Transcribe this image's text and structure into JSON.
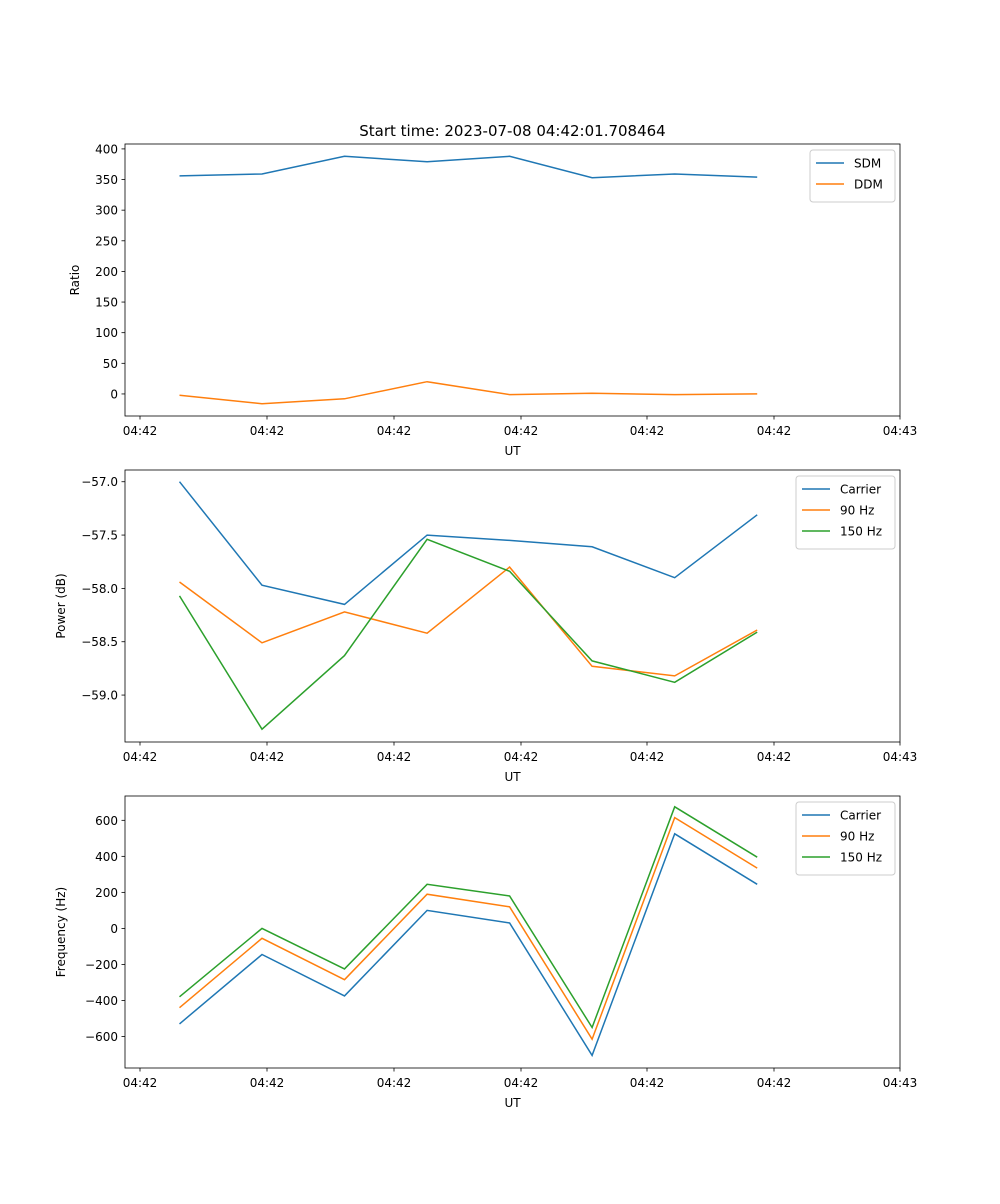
{
  "figure_title": "Start time: 2023-07-08 04:42:01.708464",
  "colors": {
    "blue": "#1f77b4",
    "orange": "#ff7f0e",
    "green": "#2ca02c"
  },
  "chart_data": [
    {
      "type": "line",
      "title": "Start time: 2023-07-08 04:42:01.708464",
      "xlabel": "UT",
      "ylabel": "Ratio",
      "x_ticks": [
        "04:42",
        "04:42",
        "04:42",
        "04:42",
        "04:42",
        "04:42",
        "04:43"
      ],
      "x_index": [
        1,
        2,
        3,
        4,
        5,
        6,
        7,
        8
      ],
      "xlim": [
        0.34,
        9.73
      ],
      "ylim": [
        -36,
        408
      ],
      "y_ticks": [
        400,
        350,
        300,
        250,
        200,
        150,
        100,
        50,
        0
      ],
      "legend_position": "top-right",
      "series": [
        {
          "name": "SDM",
          "color": "#1f77b4",
          "values": [
            356,
            359,
            388,
            379,
            388,
            353,
            359,
            354
          ]
        },
        {
          "name": "DDM",
          "color": "#ff7f0e",
          "values": [
            -2,
            -16,
            -8,
            20,
            -1,
            1,
            -1,
            0
          ]
        }
      ]
    },
    {
      "type": "line",
      "title": "",
      "xlabel": "UT",
      "ylabel": "Power (dB)",
      "x_ticks": [
        "04:42",
        "04:42",
        "04:42",
        "04:42",
        "04:42",
        "04:42",
        "04:43"
      ],
      "x_index": [
        1,
        2,
        3,
        4,
        5,
        6,
        7,
        8
      ],
      "xlim": [
        0.34,
        9.73
      ],
      "ylim": [
        -59.44,
        -56.89
      ],
      "y_ticks": [
        -57.0,
        -57.5,
        -58.0,
        -58.5,
        -59.0
      ],
      "y_tick_labels": [
        "−57.0",
        "−57.5",
        "−58.0",
        "−58.5",
        "−59.0"
      ],
      "legend_position": "top-right",
      "series": [
        {
          "name": "Carrier",
          "color": "#1f77b4",
          "values": [
            -57.0,
            -57.97,
            -58.15,
            -57.5,
            -57.55,
            -57.61,
            -57.9,
            -57.31
          ]
        },
        {
          "name": "90 Hz",
          "color": "#ff7f0e",
          "values": [
            -57.94,
            -58.51,
            -58.22,
            -58.42,
            -57.8,
            -58.73,
            -58.82,
            -58.39
          ]
        },
        {
          "name": "150 Hz",
          "color": "#2ca02c",
          "values": [
            -58.07,
            -59.32,
            -58.63,
            -57.54,
            -57.84,
            -58.68,
            -58.88,
            -58.41
          ]
        }
      ]
    },
    {
      "type": "line",
      "title": "",
      "xlabel": "UT",
      "ylabel": "Frequency (Hz)",
      "x_ticks": [
        "04:42",
        "04:42",
        "04:42",
        "04:42",
        "04:42",
        "04:42",
        "04:43"
      ],
      "x_index": [
        1,
        2,
        3,
        4,
        5,
        6,
        7,
        8
      ],
      "xlim": [
        0.34,
        9.73
      ],
      "ylim": [
        -775,
        735
      ],
      "y_ticks": [
        600,
        400,
        200,
        0,
        -200,
        -400,
        -600
      ],
      "y_tick_labels": [
        "600",
        "400",
        "200",
        "0",
        "−200",
        "−400",
        "−600"
      ],
      "legend_position": "top-right",
      "series": [
        {
          "name": "Carrier",
          "color": "#1f77b4",
          "values": [
            -530,
            -145,
            -375,
            100,
            30,
            -705,
            525,
            245
          ]
        },
        {
          "name": "90 Hz",
          "color": "#ff7f0e",
          "values": [
            -440,
            -55,
            -285,
            190,
            120,
            -615,
            615,
            335
          ]
        },
        {
          "name": "150 Hz",
          "color": "#2ca02c",
          "values": [
            -380,
            0,
            -225,
            245,
            180,
            -550,
            675,
            395
          ]
        }
      ]
    }
  ]
}
